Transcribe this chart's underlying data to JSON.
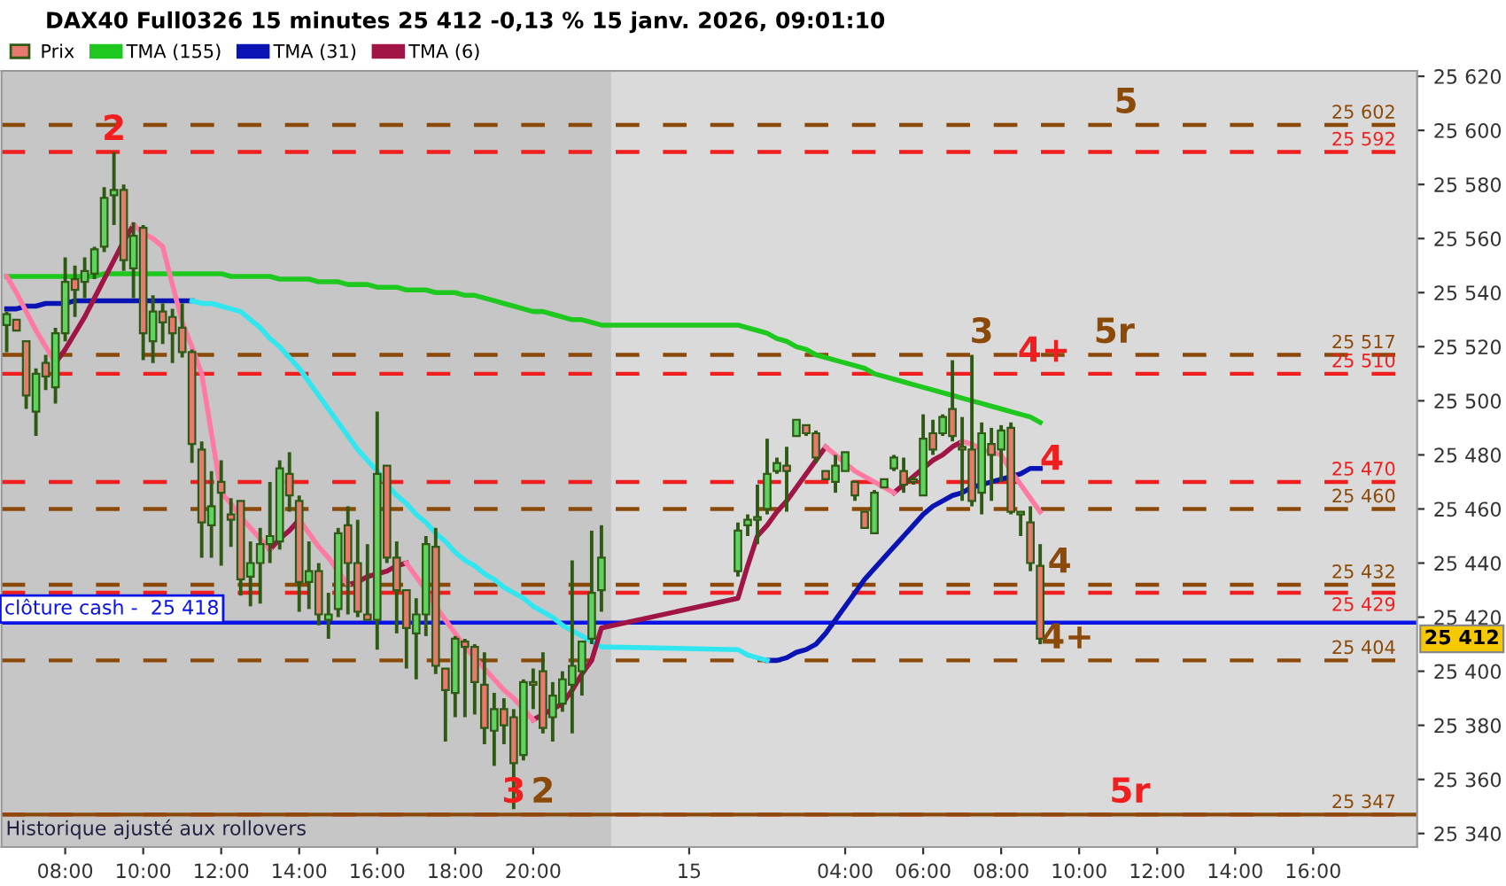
{
  "chart_data": {
    "type": "candlestick",
    "title": "DAX40 Full0326 15 minutes 25 412 -0,13 % 15 janv. 2026, 09:01:10",
    "x": [
      "2026-01-14T06:30",
      "2026-01-14T06:45",
      "2026-01-14T07:00",
      "2026-01-14T07:15",
      "2026-01-14T07:30",
      "2026-01-14T07:45",
      "2026-01-14T08:00",
      "2026-01-14T08:15",
      "2026-01-14T08:30",
      "2026-01-14T08:45",
      "2026-01-14T09:00",
      "2026-01-14T09:15",
      "2026-01-14T09:30",
      "2026-01-14T09:45",
      "2026-01-14T10:00",
      "2026-01-14T10:15",
      "2026-01-14T10:30",
      "2026-01-14T10:45",
      "2026-01-14T11:00",
      "2026-01-14T11:15",
      "2026-01-14T11:30",
      "2026-01-14T11:45",
      "2026-01-14T12:00",
      "2026-01-14T12:15",
      "2026-01-14T12:30",
      "2026-01-14T12:45",
      "2026-01-14T13:00",
      "2026-01-14T13:15",
      "2026-01-14T13:30",
      "2026-01-14T13:45",
      "2026-01-14T14:00",
      "2026-01-14T14:15",
      "2026-01-14T14:30",
      "2026-01-14T14:45",
      "2026-01-14T15:00",
      "2026-01-14T15:15",
      "2026-01-14T15:30",
      "2026-01-14T15:45",
      "2026-01-14T16:00",
      "2026-01-14T16:15",
      "2026-01-14T16:30",
      "2026-01-14T16:45",
      "2026-01-14T17:00",
      "2026-01-14T17:15",
      "2026-01-14T17:30",
      "2026-01-14T17:45",
      "2026-01-14T18:00",
      "2026-01-14T18:15",
      "2026-01-14T18:30",
      "2026-01-14T18:45",
      "2026-01-14T19:00",
      "2026-01-14T19:15",
      "2026-01-14T19:30",
      "2026-01-14T19:45",
      "2026-01-14T20:00",
      "2026-01-14T20:15",
      "2026-01-14T20:30",
      "2026-01-14T20:45",
      "2026-01-14T21:00",
      "2026-01-14T21:15",
      "2026-01-14T21:30",
      "2026-01-14T21:45",
      "2026-01-15T01:15",
      "2026-01-15T01:30",
      "2026-01-15T01:45",
      "2026-01-15T02:00",
      "2026-01-15T02:15",
      "2026-01-15T02:30",
      "2026-01-15T02:45",
      "2026-01-15T03:00",
      "2026-01-15T03:15",
      "2026-01-15T03:30",
      "2026-01-15T03:45",
      "2026-01-15T04:00",
      "2026-01-15T04:15",
      "2026-01-15T04:30",
      "2026-01-15T04:45",
      "2026-01-15T05:00",
      "2026-01-15T05:15",
      "2026-01-15T05:30",
      "2026-01-15T05:45",
      "2026-01-15T06:00",
      "2026-01-15T06:15",
      "2026-01-15T06:30",
      "2026-01-15T06:45",
      "2026-01-15T07:00",
      "2026-01-15T07:15",
      "2026-01-15T07:30",
      "2026-01-15T07:45",
      "2026-01-15T08:00",
      "2026-01-15T08:15",
      "2026-01-15T08:30",
      "2026-01-15T08:45",
      "2026-01-15T09:00"
    ],
    "series": [
      {
        "name": "Prix",
        "ohlc": [
          [
            25528,
            25533,
            25518,
            25532
          ],
          [
            25530,
            25530,
            25526,
            25526
          ],
          [
            25522,
            25522,
            25497,
            25502
          ],
          [
            25496,
            25512,
            25487,
            25510
          ],
          [
            25514,
            25517,
            25504,
            25509
          ],
          [
            25505,
            25527,
            25499,
            25525
          ],
          [
            25525,
            25553,
            25522,
            25544
          ],
          [
            25545,
            25550,
            25531,
            25541
          ],
          [
            25544,
            25553,
            25538,
            25548
          ],
          [
            25547,
            25557,
            25545,
            25556
          ],
          [
            25557,
            25579,
            25555,
            25575
          ],
          [
            25576,
            25592,
            25565,
            25578
          ],
          [
            25578,
            25580,
            25548,
            25552
          ],
          [
            25549,
            25566,
            25538,
            25561
          ],
          [
            25564,
            25565,
            25515,
            25525
          ],
          [
            25522,
            25539,
            25514,
            25533
          ],
          [
            25533,
            25536,
            25521,
            25529
          ],
          [
            25531,
            25534,
            25514,
            25525
          ],
          [
            25527,
            25536,
            25516,
            25518
          ],
          [
            25518,
            25519,
            25477,
            25484
          ],
          [
            25482,
            25485,
            25442,
            25455
          ],
          [
            25454,
            25474,
            25442,
            25461
          ],
          [
            25470,
            25478,
            25439,
            25466
          ],
          [
            25458,
            25464,
            25446,
            25456
          ],
          [
            25463,
            25463,
            25428,
            25434
          ],
          [
            25435,
            25448,
            25424,
            25440
          ],
          [
            25440,
            25453,
            25425,
            25447
          ],
          [
            25447,
            25470,
            25440,
            25450
          ],
          [
            25448,
            25478,
            25445,
            25475
          ],
          [
            25473,
            25481,
            25459,
            25465
          ],
          [
            25463,
            25465,
            25422,
            25433
          ],
          [
            25433,
            25448,
            25423,
            25437
          ],
          [
            25437,
            25440,
            25417,
            25421
          ],
          [
            25419,
            25429,
            25412,
            25421
          ],
          [
            25423,
            25453,
            25420,
            25451
          ],
          [
            25454,
            25461,
            25421,
            25440
          ],
          [
            25440,
            25456,
            25420,
            25422
          ],
          [
            25421,
            25447,
            25419,
            25419
          ],
          [
            25419,
            25496,
            25408,
            25473
          ],
          [
            25476,
            25476,
            25440,
            25442
          ],
          [
            25442,
            25448,
            25414,
            25430
          ],
          [
            25430,
            25430,
            25401,
            25416
          ],
          [
            25414,
            25427,
            25397,
            25421
          ],
          [
            25421,
            25450,
            25413,
            25447
          ],
          [
            25446,
            25453,
            25399,
            25402
          ],
          [
            25401,
            25401,
            25374,
            25393
          ],
          [
            25392,
            25413,
            25383,
            25412
          ],
          [
            25411,
            25412,
            25383,
            25409
          ],
          [
            25409,
            25410,
            25384,
            25396
          ],
          [
            25395,
            25407,
            25373,
            25379
          ],
          [
            25378,
            25392,
            25365,
            25386
          ],
          [
            25386,
            25390,
            25373,
            25380
          ],
          [
            25383,
            25386,
            25349,
            25366
          ],
          [
            25369,
            25397,
            25367,
            25396
          ],
          [
            25396,
            25401,
            25386,
            25395
          ],
          [
            25400,
            25407,
            25377,
            25379
          ],
          [
            25383,
            25396,
            25374,
            25391
          ],
          [
            25388,
            25400,
            25385,
            25397
          ],
          [
            25395,
            25441,
            25377,
            25402
          ],
          [
            25400,
            25411,
            25391,
            25411
          ],
          [
            25412,
            25452,
            25410,
            25429
          ],
          [
            25430,
            25454,
            25422,
            25442
          ],
          [
            25437,
            25455,
            25435,
            25452
          ],
          [
            25454,
            25458,
            25450,
            25456
          ],
          [
            25456,
            25469,
            25447,
            25457
          ],
          [
            25460,
            25486,
            25458,
            25473
          ],
          [
            25474,
            25479,
            25473,
            25477
          ],
          [
            25476,
            25483,
            25459,
            25474
          ],
          [
            25487,
            25493,
            25487,
            25493
          ],
          [
            25491,
            25491,
            25487,
            25488
          ],
          [
            25488,
            25489,
            25477,
            25479
          ],
          [
            25474,
            25474,
            25471,
            25471
          ],
          [
            25470,
            25480,
            25466,
            25476
          ],
          [
            25474,
            25481,
            25474,
            25481
          ],
          [
            25470,
            25470,
            25463,
            25465
          ],
          [
            25459,
            25459,
            25453,
            25453
          ],
          [
            25451,
            25467,
            25451,
            25466
          ],
          [
            25468,
            25471,
            25468,
            25471
          ],
          [
            25475,
            25480,
            25474,
            25479
          ],
          [
            25474,
            25479,
            25466,
            25469
          ],
          [
            25471,
            25472,
            25469,
            25470
          ],
          [
            25465,
            25495,
            25465,
            25486
          ],
          [
            25488,
            25493,
            25480,
            25482
          ],
          [
            25488,
            25495,
            25487,
            25494
          ],
          [
            25497,
            25515,
            25485,
            25487
          ],
          [
            25483,
            25494,
            25463,
            25482
          ],
          [
            25482,
            25517,
            25461,
            25463
          ],
          [
            25466,
            25492,
            25458,
            25488
          ],
          [
            25484,
            25490,
            25463,
            25480
          ],
          [
            25482,
            25491,
            25470,
            25489
          ],
          [
            25490,
            25492,
            25458,
            25459
          ],
          [
            25458,
            25459,
            25450,
            25459
          ],
          [
            25455,
            25461,
            25437,
            25440
          ],
          [
            25439,
            25447,
            25410,
            25412
          ]
        ],
        "colors": [
          "#5fd35f",
          "#e8796f",
          "#e8796f",
          "#5fd35f",
          "#e8796f",
          "#5fd35f",
          "#5fd35f",
          "#e8796f",
          "#5fd35f",
          "#5fd35f",
          "#5fd35f",
          "#5fd35f",
          "#e8796f",
          "#5fd35f",
          "#e8796f",
          "#5fd35f",
          "#e8796f",
          "#e8796f",
          "#e8796f",
          "#e8796f",
          "#e8796f",
          "#5fd35f",
          "#e8796f",
          "#e8796f",
          "#e8796f",
          "#5fd35f",
          "#5fd35f",
          "#5fd35f",
          "#5fd35f",
          "#e8796f",
          "#e8796f",
          "#5fd35f",
          "#e8796f",
          "#5fd35f",
          "#5fd35f",
          "#e8796f",
          "#e8796f",
          "#e8796f",
          "#5fd35f",
          "#e8796f",
          "#e8796f",
          "#e8796f",
          "#5fd35f",
          "#5fd35f",
          "#e8796f",
          "#e8796f",
          "#5fd35f",
          "#e8796f",
          "#e8796f",
          "#e8796f",
          "#5fd35f",
          "#e8796f",
          "#e8796f",
          "#5fd35f",
          "#e8796f",
          "#e8796f",
          "#5fd35f",
          "#5fd35f",
          "#5fd35f",
          "#5fd35f",
          "#5fd35f",
          "#5fd35f",
          "#5fd35f",
          "#5fd35f",
          "#5fd35f",
          "#5fd35f",
          "#5fd35f",
          "#e8796f",
          "#5fd35f",
          "#e8796f",
          "#e8796f",
          "#e8796f",
          "#5fd35f",
          "#5fd35f",
          "#e8796f",
          "#e8796f",
          "#5fd35f",
          "#5fd35f",
          "#5fd35f",
          "#e8796f",
          "#e8796f",
          "#5fd35f",
          "#e8796f",
          "#5fd35f",
          "#e8796f",
          "#e8796f",
          "#e8796f",
          "#5fd35f",
          "#e8796f",
          "#5fd35f",
          "#e8796f",
          "#5fd35f",
          "#e8796f",
          "#e8796f"
        ]
      },
      {
        "name": "TMA (155)",
        "type": "line",
        "color": "#1ec81e",
        "values": [
          25546,
          25546,
          25546,
          25546,
          25546,
          25546,
          25546,
          25546,
          25546,
          25546,
          25547,
          25547,
          25547,
          25547,
          25547,
          25547,
          25547,
          25547,
          25547,
          25547,
          25547,
          25547,
          25547,
          25546,
          25546,
          25546,
          25546,
          25546,
          25545,
          25545,
          25545,
          25545,
          25544,
          25544,
          25544,
          25543,
          25543,
          25543,
          25542,
          25542,
          25542,
          25541,
          25541,
          25541,
          25540,
          25540,
          25540,
          25539,
          25539,
          25538,
          25537,
          25536,
          25535,
          25534,
          25533,
          25533,
          25532,
          25531,
          25530,
          25530,
          25529,
          25528,
          25528,
          25527,
          25526,
          25525,
          25523,
          25522,
          25520,
          25519,
          25517,
          25516,
          25515,
          25514,
          25513,
          25512,
          25510,
          25509,
          25508,
          25507,
          25506,
          25505,
          25504,
          25503,
          25502,
          25501,
          25500,
          25499,
          25498,
          25497,
          25496,
          25495,
          25494,
          25492
        ]
      },
      {
        "name": "TMA (31)",
        "type": "line",
        "color": "#0a14b4",
        "values": [
          25534,
          25534,
          25535,
          25535,
          25536,
          25536,
          25536,
          25537,
          25537,
          25537,
          25537,
          25537,
          25537,
          25537,
          25537,
          25537,
          25537,
          25537,
          25537,
          25537,
          null,
          null,
          null,
          null,
          null,
          null,
          null,
          null,
          null,
          null,
          null,
          null,
          null,
          null,
          null,
          null,
          null,
          null,
          null,
          null,
          null,
          null,
          null,
          null,
          null,
          null,
          null,
          null,
          null,
          null,
          null,
          null,
          null,
          null,
          null,
          null,
          null,
          null,
          null,
          null,
          null,
          null,
          null,
          null,
          null,
          25404,
          25404,
          25405,
          25407,
          25408,
          25410,
          25414,
          25419,
          25424,
          25429,
          25434,
          25438,
          25442,
          25446,
          25450,
          25454,
          25458,
          25461,
          25463,
          25465,
          25466,
          25468,
          25469,
          25470,
          25471,
          25472,
          25473,
          25475,
          25475
        ]
      },
      {
        "type": "line",
        "color": "#32e6f0",
        "values": [
          null,
          null,
          null,
          null,
          null,
          null,
          null,
          null,
          null,
          null,
          null,
          null,
          null,
          null,
          null,
          null,
          null,
          null,
          null,
          25537,
          25536,
          25536,
          25535,
          25534,
          25533,
          25530,
          25527,
          25523,
          25520,
          25516,
          25512,
          25507,
          25502,
          25497,
          25492,
          25487,
          25482,
          25478,
          25474,
          25469,
          25465,
          25462,
          25458,
          25455,
          25451,
          25448,
          25444,
          25441,
          25439,
          25436,
          25434,
          25431,
          25429,
          25427,
          25424,
          25422,
          25420,
          25417,
          25415,
          25413,
          25411,
          25409,
          25408,
          25406,
          25405,
          25404,
          null,
          null,
          null,
          null,
          null,
          null,
          null,
          null,
          null,
          null,
          null,
          null,
          null,
          null,
          null,
          null,
          null,
          null,
          null,
          null,
          null,
          null,
          null,
          null,
          null,
          null,
          null,
          null
        ]
      },
      {
        "name": "TMA (6)",
        "type": "line",
        "color": "#a01446",
        "values": [
          null,
          null,
          null,
          null,
          null,
          25514,
          25519,
          25525,
          25531,
          25538,
          25545,
          25552,
          25559,
          25565,
          null,
          null,
          null,
          null,
          null,
          null,
          null,
          null,
          null,
          null,
          null,
          null,
          null,
          25445,
          25449,
          25452,
          25456,
          null,
          null,
          null,
          null,
          25432,
          25433,
          25435,
          25436,
          25437,
          25439,
          25440,
          null,
          null,
          null,
          null,
          null,
          null,
          null,
          null,
          null,
          null,
          null,
          null,
          25382,
          25384,
          25386,
          25388,
          25393,
          25399,
          25404,
          25416,
          25427,
          25439,
          25450,
          25454,
          25459,
          25463,
          25468,
          25473,
          25478,
          25483,
          null,
          null,
          null,
          null,
          null,
          null,
          25466,
          25469,
          25472,
          25475,
          25478,
          25480,
          25483,
          25485,
          null,
          null,
          null,
          null,
          null,
          null,
          null,
          null
        ]
      },
      {
        "type": "line",
        "color": "#ff7aa2",
        "values": [
          25546,
          25540,
          25533,
          25526,
          25520,
          25514,
          null,
          null,
          null,
          null,
          null,
          null,
          null,
          25565,
          25562,
          25560,
          25557,
          25543,
          25529,
          25520,
          25510,
          25488,
          25466,
          25462,
          25457,
          25453,
          25449,
          25445,
          null,
          null,
          25456,
          25451,
          25446,
          25442,
          25437,
          25432,
          null,
          null,
          null,
          null,
          null,
          25440,
          25435,
          25430,
          25424,
          25419,
          25414,
          25409,
          25405,
          25401,
          25397,
          25393,
          25390,
          25386,
          25382,
          null,
          null,
          null,
          null,
          null,
          null,
          null,
          null,
          null,
          null,
          null,
          null,
          null,
          null,
          null,
          null,
          25483,
          25480,
          25477,
          25474,
          25472,
          25470,
          25468,
          25466,
          null,
          null,
          null,
          null,
          null,
          null,
          25485,
          25484,
          25482,
          25481,
          25480,
          25474,
          25469,
          25464,
          25459
        ]
      }
    ],
    "xlim": [
      "2026-01-14T06:22",
      "2026-01-15T18:40"
    ],
    "xticks": [
      {
        "value": "2026-01-14T08:00",
        "label": "08:00"
      },
      {
        "value": "2026-01-14T10:00",
        "label": "10:00"
      },
      {
        "value": "2026-01-14T12:00",
        "label": "12:00"
      },
      {
        "value": "2026-01-14T14:00",
        "label": "14:00"
      },
      {
        "value": "2026-01-14T16:00",
        "label": "16:00"
      },
      {
        "value": "2026-01-14T18:00",
        "label": "18:00"
      },
      {
        "value": "2026-01-14T20:00",
        "label": "20:00"
      },
      {
        "value": "2026-01-15T00:00",
        "label": "15"
      },
      {
        "value": "2026-01-15T04:00",
        "label": "04:00"
      },
      {
        "value": "2026-01-15T06:00",
        "label": "06:00"
      },
      {
        "value": "2026-01-15T08:00",
        "label": "08:00"
      },
      {
        "value": "2026-01-15T10:00",
        "label": "10:00"
      },
      {
        "value": "2026-01-15T12:00",
        "label": "12:00"
      },
      {
        "value": "2026-01-15T14:00",
        "label": "14:00"
      },
      {
        "value": "2026-01-15T16:00",
        "label": "16:00"
      }
    ],
    "ylim": [
      25335,
      25622
    ],
    "yticks": [
      {
        "value": 25340,
        "label": "25 340"
      },
      {
        "value": 25360,
        "label": "25 360"
      },
      {
        "value": 25380,
        "label": "25 380"
      },
      {
        "value": 25400,
        "label": "25 400"
      },
      {
        "value": 25420,
        "label": "25 420"
      },
      {
        "value": 25440,
        "label": "25 440"
      },
      {
        "value": 25460,
        "label": "25 460"
      },
      {
        "value": 25480,
        "label": "25 480"
      },
      {
        "value": 25500,
        "label": "25 500"
      },
      {
        "value": 25520,
        "label": "25 520"
      },
      {
        "value": 25540,
        "label": "25 540"
      },
      {
        "value": 25560,
        "label": "25 560"
      },
      {
        "value": 25580,
        "label": "25 580"
      },
      {
        "value": 25600,
        "label": "25 600"
      },
      {
        "value": 25620,
        "label": "25 620"
      }
    ],
    "legend": "top left",
    "bands": [
      {
        "axis": "x",
        "from": "2026-01-14T06:22",
        "to": "2026-01-14T22:00",
        "color": "#c6c6c6"
      }
    ],
    "ref_lines": [
      {
        "axis": "y",
        "value": 25602,
        "label": "25 602",
        "color": "#8b4a0a",
        "line_style": "dashed"
      },
      {
        "axis": "y",
        "value": 25592,
        "label": "25 592",
        "color": "#f01e1e",
        "line_style": "dashed"
      },
      {
        "axis": "y",
        "value": 25517,
        "label": "25 517",
        "color": "#8b4a0a",
        "line_style": "dashed"
      },
      {
        "axis": "y",
        "value": 25510,
        "label": "25 510",
        "color": "#f01e1e",
        "line_style": "dashed"
      },
      {
        "axis": "y",
        "value": 25470,
        "label": "25 470",
        "color": "#f01e1e",
        "line_style": "dashed"
      },
      {
        "axis": "y",
        "value": 25460,
        "label": "25 460",
        "color": "#8b4a0a",
        "line_style": "dashed"
      },
      {
        "axis": "y",
        "value": 25432,
        "label": "25 432",
        "color": "#8b4a0a",
        "line_style": "dashed"
      },
      {
        "axis": "y",
        "value": 25429,
        "label": "25 429",
        "color": "#f01e1e",
        "line_style": "dashed"
      },
      {
        "axis": "y",
        "value": 25418,
        "label": "clôture cash -  25 418",
        "color": "#0a14e6",
        "line_style": "solid"
      },
      {
        "axis": "y",
        "value": 25404,
        "label": "25 404",
        "color": "#8b4a0a",
        "line_style": "dashed"
      },
      {
        "axis": "y",
        "value": 25347,
        "color": "#f01e1e",
        "line_style": "dashed"
      },
      {
        "axis": "y",
        "value": 25347,
        "label": "25 347",
        "color": "#8b4a0a",
        "line_style": "solid"
      }
    ],
    "annotations": [
      {
        "text": "2",
        "x": "2026-01-14T09:15",
        "y": 25592
      },
      {
        "text": "3",
        "x": "2026-01-14T19:30",
        "y": 25347
      },
      {
        "text": "2",
        "x": "2026-01-14T20:15",
        "y": 25347
      },
      {
        "text": "3",
        "x": "2026-01-15T07:30",
        "y": 25517
      },
      {
        "text": "4+",
        "x": "2026-01-15T09:06",
        "y": 25510
      },
      {
        "text": "5r",
        "x": "2026-01-15T10:54",
        "y": 25517
      },
      {
        "text": "5",
        "x": "2026-01-15T11:12",
        "y": 25602
      },
      {
        "text": "4",
        "x": "2026-01-15T09:18",
        "y": 25470
      },
      {
        "text": "4",
        "x": "2026-01-15T09:30",
        "y": 25432
      },
      {
        "text": "4+",
        "x": "2026-01-15T09:42",
        "y": 25404
      },
      {
        "text": "5r",
        "x": "2026-01-15T11:18",
        "y": 25347
      },
      "25 412",
      "Historique ajusté aux rollovers"
    ]
  }
}
